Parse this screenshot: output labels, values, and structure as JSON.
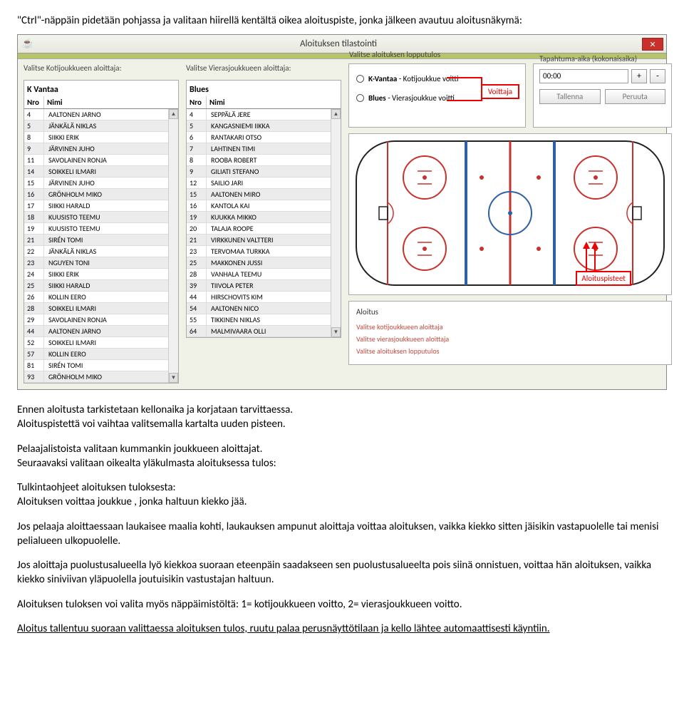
{
  "intro": "\"Ctrl\"-näppäin pidetään pohjassa ja valitaan hiirellä kentältä oikea aloituspiste, jonka jälkeen avautuu aloitusnäkymä:",
  "window": {
    "title": "Aloituksen tilastointi"
  },
  "labels": {
    "home_starter": "Valitse Kotijoukkueen aloittaja:",
    "away_starter": "Valitse Vierasjoukkueen aloittaja:",
    "result": "Valitse aloituksen lopputulos",
    "time": "Tapahtuma-aika (kokonaisaika)"
  },
  "home": {
    "name": "K Vantaa",
    "nro": "Nro",
    "nimi": "Nimi",
    "players": [
      {
        "n": "4",
        "name": "AALTONEN JARNO"
      },
      {
        "n": "5",
        "name": "JÄNKÄLÄ NIKLAS"
      },
      {
        "n": "8",
        "name": "SIIKKI ERIK"
      },
      {
        "n": "9",
        "name": "JÄRVINEN JUHO"
      },
      {
        "n": "11",
        "name": "SAVOLAINEN RONJA"
      },
      {
        "n": "14",
        "name": "SOIKKELI ILMARI"
      },
      {
        "n": "15",
        "name": "JÄRVINEN JUHO"
      },
      {
        "n": "16",
        "name": "GRÖNHOLM MIKO"
      },
      {
        "n": "17",
        "name": "SIIKKI HARALD"
      },
      {
        "n": "18",
        "name": "KUUSISTO TEEMU"
      },
      {
        "n": "19",
        "name": "KUUSISTO TEEMU"
      },
      {
        "n": "21",
        "name": "SIRÉN TOMI"
      },
      {
        "n": "22",
        "name": "JÄNKÄLÄ NIKLAS"
      },
      {
        "n": "23",
        "name": "NGUYEN TONI"
      },
      {
        "n": "24",
        "name": "SIIKKI ERIK"
      },
      {
        "n": "25",
        "name": "SIIKKI HARALD"
      },
      {
        "n": "26",
        "name": "KOLLIN EERO"
      },
      {
        "n": "28",
        "name": "SOIKKELI ILMARI"
      },
      {
        "n": "29",
        "name": "SAVOLAINEN RONJA"
      },
      {
        "n": "44",
        "name": "AALTONEN JARNO"
      },
      {
        "n": "52",
        "name": "SOIKKELI ILMARI"
      },
      {
        "n": "57",
        "name": "KOLLIN EERO"
      },
      {
        "n": "81",
        "name": "SIRÉN TOMI"
      },
      {
        "n": "93",
        "name": "GRÖNHOLM MIKO"
      }
    ]
  },
  "away": {
    "name": "Blues",
    "nro": "Nro",
    "nimi": "Nimi",
    "players": [
      {
        "n": "4",
        "name": "SEPPÄLÄ JERE"
      },
      {
        "n": "5",
        "name": "KANGASNIEMI IIKKA"
      },
      {
        "n": "6",
        "name": "RANTAKARI OTSO"
      },
      {
        "n": "7",
        "name": "LAHTINEN TIMI"
      },
      {
        "n": "8",
        "name": "ROOBA ROBERT"
      },
      {
        "n": "9",
        "name": "GILIATI STEFANO"
      },
      {
        "n": "12",
        "name": "SAILIO JARI"
      },
      {
        "n": "15",
        "name": "AALTONEN MIRO"
      },
      {
        "n": "16",
        "name": "KANTOLA KAI"
      },
      {
        "n": "19",
        "name": "KUUKKA MIKKO"
      },
      {
        "n": "20",
        "name": "TALAJA ROOPE"
      },
      {
        "n": "21",
        "name": "VIRKKUNEN VALTTERI"
      },
      {
        "n": "23",
        "name": "TERVOMAA TURKKA"
      },
      {
        "n": "25",
        "name": "MAKKONEN JUSSI"
      },
      {
        "n": "28",
        "name": "VANHALA TEEMU"
      },
      {
        "n": "39",
        "name": "TIIVOLA PETER"
      },
      {
        "n": "44",
        "name": "HIRSCHOVITS KIM"
      },
      {
        "n": "54",
        "name": "AALTONEN NICO"
      },
      {
        "n": "55",
        "name": "TIKKINEN NIKLAS"
      },
      {
        "n": "64",
        "name": "MALMIVAARA OLLI"
      }
    ]
  },
  "result": {
    "home_b": "K-Vantaa",
    "home_t": " -  Kotijoukkue voitti",
    "away_b": "Blues",
    "away_t": " -   Vierasjoukkue voitti",
    "voittaja": "Voittaja"
  },
  "time": {
    "value": "00:00",
    "plus": "+",
    "minus": "-",
    "save": "Tallenna",
    "cancel": "Peruuta"
  },
  "rink": {
    "bg": "#ffffff",
    "border": "#222222",
    "ice": "#ffffff",
    "red": "#c9312d",
    "blue": "#2f5fa6",
    "faceoff_fill": "#ffffff",
    "aloituspisteet": "Aloituspisteet"
  },
  "bottom": {
    "h": "Aloitus",
    "l1": "Valitse kotijoukkueen aloittaja",
    "l2": "Valitse vierasjoukkueen aloittaja",
    "l3": "Valitse aloituksen lopputulos"
  },
  "body": {
    "p1": "Ennen aloitusta tarkistetaan kellonaika ja korjataan tarvittaessa.",
    "p2": "Aloituspistettä voi vaihtaa valitsemalla kartalta uuden pisteen.",
    "p3": "Pelaajalistoista valitaan kummankin joukkueen aloittajat.",
    "p4": "Seuraavaksi valitaan oikealta yläkulmasta aloituksessa tulos:",
    "p5a": "Tulkintaohjeet aloituksen tuloksesta:",
    "p5b": "Aloituksen voittaa joukkue , jonka haltuun kiekko jää.",
    "p6": "Jos pelaaja aloittaessaan laukaisee maalia kohti, laukauksen ampunut aloittaja voittaa aloituksen, vaikka kiekko sitten jäisikin vastapuolelle tai menisi pelialueen ulkopuolelle.",
    "p7": "Jos aloittaja puolustusalueella lyö kiekkoa suoraan eteenpäin saadakseen sen puolustusalueelta pois siinä onnistuen, voittaa hän aloituksen, vaikka  kiekko siniviivan yläpuolella joutuisikin vastustajan haltuun.",
    "p8": "Aloituksen tuloksen voi valita myös näppäimistöltä: 1= kotijoukkueen voitto, 2= vierasjoukkueen voitto.",
    "p9": "Aloitus tallentuu suoraan valittaessa aloituksen tulos, ruutu palaa  perusnäyttötilaan ja kello lähtee automaattisesti käyntiin."
  }
}
